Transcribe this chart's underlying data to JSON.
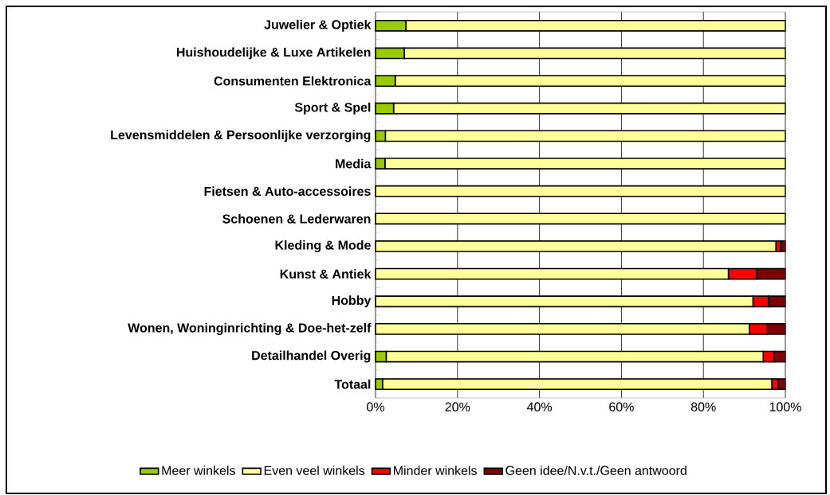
{
  "chart_data": {
    "type": "bar",
    "orientation": "horizontal",
    "stacked": true,
    "categories": [
      "Juwelier & Optiek",
      "Huishoudelijke & Luxe Artikelen",
      "Consumenten Elektronica",
      "Sport & Spel",
      "Levensmiddelen & Persoonlijke verzorging",
      "Media",
      "Fietsen & Auto-accessoires",
      "Schoenen & Lederwaren",
      "Kleding & Mode",
      "Kunst & Antiek",
      "Hobby",
      "Wonen, Woninginrichting & Doe-het-zelf",
      "Detailhandel Overig",
      "Totaal"
    ],
    "series": [
      {
        "name": "Meer winkels",
        "color": "#99cc00",
        "values": [
          7.4,
          7.0,
          4.8,
          4.4,
          2.4,
          2.3,
          0,
          0,
          0,
          0,
          0,
          0,
          2.6,
          1.7
        ]
      },
      {
        "name": "Even veel winkels",
        "color": "#ffff99",
        "values": [
          92.6,
          93.0,
          95.2,
          95.6,
          97.6,
          97.7,
          100,
          100,
          97.7,
          86.1,
          92.1,
          91.2,
          92.0,
          95.0
        ]
      },
      {
        "name": "Minder winkels",
        "color": "#ff0000",
        "values": [
          0,
          0,
          0,
          0,
          0,
          0,
          0,
          0,
          1.1,
          6.9,
          3.8,
          4.4,
          2.6,
          1.5
        ]
      },
      {
        "name": "Geen idee/N.v.t./Geen antwoord",
        "color": "#800000",
        "values": [
          0,
          0,
          0,
          0,
          0,
          0,
          0,
          0,
          1.2,
          7.0,
          4.1,
          4.4,
          2.8,
          1.8
        ]
      }
    ],
    "xlim": [
      0,
      100
    ],
    "xticks": [
      {
        "value": 0,
        "label": "0%"
      },
      {
        "value": 20,
        "label": "20%"
      },
      {
        "value": 40,
        "label": "40%"
      },
      {
        "value": 60,
        "label": "60%"
      },
      {
        "value": 80,
        "label": "80%"
      },
      {
        "value": 100,
        "label": "100%"
      }
    ],
    "grid": "x",
    "legend": "bottom"
  }
}
